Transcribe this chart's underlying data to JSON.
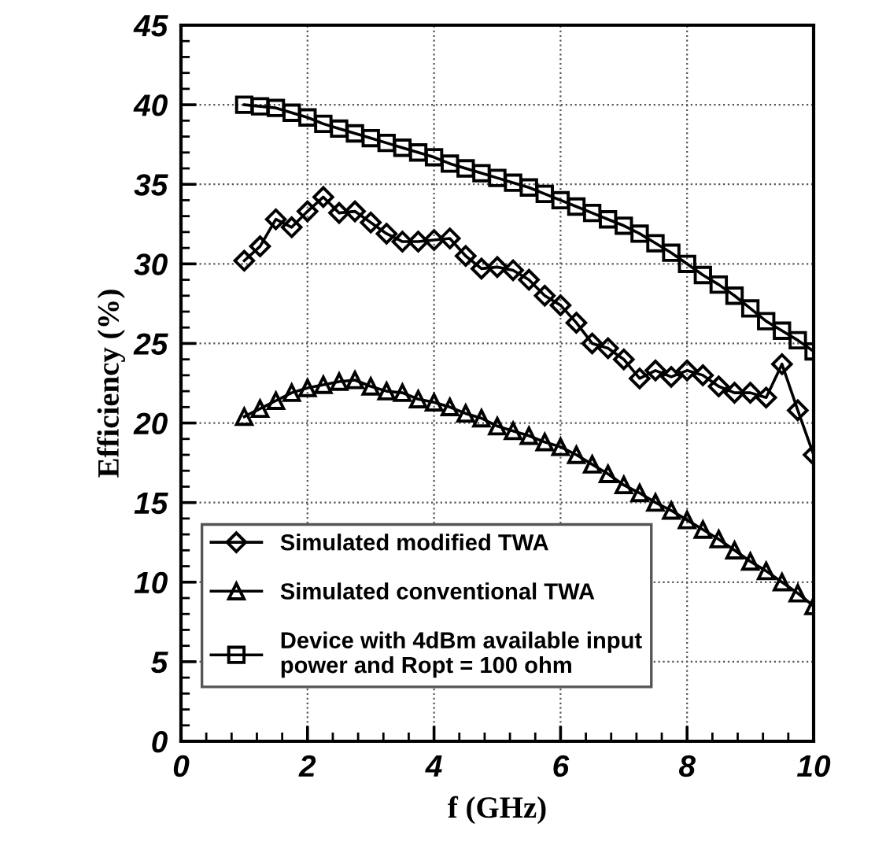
{
  "chart_data": {
    "type": "line",
    "xlabel": "f (GHz)",
    "ylabel": "Efficiency (%)",
    "xlim": [
      0,
      10
    ],
    "xticks": [
      0,
      2,
      4,
      6,
      8,
      10
    ],
    "ylim": [
      0,
      45
    ],
    "yticks": [
      0,
      5,
      10,
      15,
      20,
      25,
      30,
      35,
      40,
      45
    ],
    "grid": true,
    "legend": "bottom left",
    "line_style": "solid",
    "x": [
      1,
      1.25,
      1.5,
      1.75,
      2,
      2.25,
      2.5,
      2.75,
      3,
      3.25,
      3.5,
      3.75,
      4,
      4.25,
      4.5,
      4.75,
      5,
      5.25,
      5.5,
      5.75,
      6,
      6.25,
      6.5,
      6.75,
      7,
      7.25,
      7.5,
      7.75,
      8,
      8.25,
      8.5,
      8.75,
      9,
      9.25,
      9.5,
      9.75,
      10
    ],
    "series": [
      {
        "name": "Simulated modified TWA",
        "color": "#000000",
        "marker": "diamond",
        "values": [
          30.2,
          31.1,
          32.8,
          32.3,
          33.3,
          34.2,
          33.2,
          33.3,
          32.6,
          31.9,
          31.4,
          31.4,
          31.5,
          31.6,
          30.5,
          29.7,
          29.8,
          29.6,
          29.0,
          28.0,
          27.4,
          26.3,
          25.0,
          24.7,
          24.0,
          22.8,
          23.3,
          22.9,
          23.3,
          23.0,
          22.3,
          21.9,
          21.9,
          21.6,
          23.7,
          20.8,
          18.0
        ]
      },
      {
        "name": "Simulated conventional TWA",
        "color": "#000000",
        "marker": "triangle",
        "values": [
          20.4,
          20.9,
          21.4,
          21.9,
          22.2,
          22.4,
          22.6,
          22.7,
          22.3,
          22.0,
          21.9,
          21.5,
          21.3,
          21.0,
          20.6,
          20.3,
          19.8,
          19.5,
          19.2,
          18.8,
          18.5,
          18.0,
          17.4,
          16.8,
          16.1,
          15.6,
          15.0,
          14.5,
          13.9,
          13.3,
          12.7,
          12.0,
          11.3,
          10.7,
          10.0,
          9.3,
          8.5
        ]
      },
      {
        "name": "Device with 4dBm available input\npower and Ropt = 100 ohm",
        "color": "#000000",
        "marker": "square",
        "values": [
          40.0,
          39.9,
          39.8,
          39.5,
          39.2,
          38.8,
          38.5,
          38.2,
          37.9,
          37.6,
          37.3,
          37.0,
          36.7,
          36.3,
          36.0,
          35.7,
          35.4,
          35.1,
          34.8,
          34.4,
          34.0,
          33.6,
          33.2,
          32.8,
          32.4,
          31.9,
          31.3,
          30.7,
          30.0,
          29.3,
          28.7,
          28.0,
          27.2,
          26.4,
          25.8,
          25.2,
          24.5
        ]
      }
    ]
  }
}
